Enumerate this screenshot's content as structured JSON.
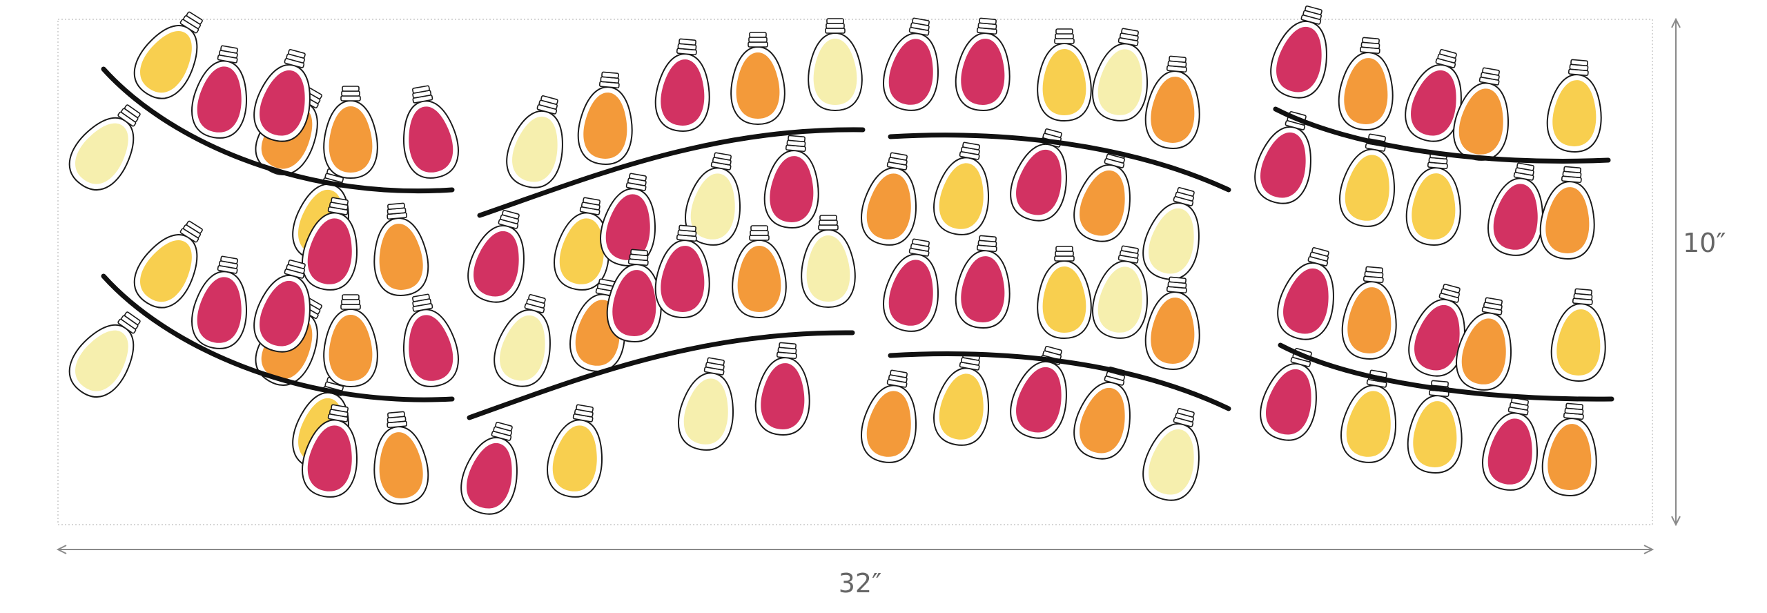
{
  "dimensions": {
    "width_label": "32″",
    "height_label": "10″"
  },
  "colors": {
    "background": "#ffffff",
    "panel_border": "#d6d6d6",
    "cord": "#111111",
    "bulb_outline": "#1a1a1a",
    "dimension_line": "#8a8a8a",
    "dimension_text": "#666666"
  },
  "bulb_palette": {
    "red": "#d23262",
    "orange": "#f39a3a",
    "yellow": "#f8cf4f",
    "cream": "#f6efae"
  },
  "strands": [
    {
      "panel": 1,
      "row": "top",
      "colors": [
        "cream",
        "yellow",
        "red",
        "orange",
        "red",
        "yellow",
        "orange",
        "red",
        "red",
        "orange"
      ]
    },
    {
      "panel": 1,
      "row": "bottom",
      "colors": [
        "cream",
        "yellow",
        "red",
        "orange",
        "red",
        "yellow",
        "orange",
        "red",
        "red",
        "orange"
      ]
    },
    {
      "panel": 2,
      "row": "top",
      "colors": [
        "cream",
        "red",
        "orange",
        "yellow",
        "red",
        "red",
        "cream",
        "orange",
        "red",
        "cream"
      ]
    },
    {
      "panel": 2,
      "row": "bottom",
      "colors": [
        "cream",
        "red",
        "orange",
        "yellow",
        "red",
        "red",
        "cream",
        "orange",
        "red",
        "cream"
      ]
    },
    {
      "panel": 3,
      "row": "top",
      "colors": [
        "red",
        "orange",
        "red",
        "yellow",
        "red",
        "orange",
        "yellow",
        "cream",
        "orange",
        "cream"
      ]
    },
    {
      "panel": 3,
      "row": "bottom",
      "colors": [
        "red",
        "orange",
        "red",
        "yellow",
        "red",
        "orange",
        "yellow",
        "cream",
        "orange",
        "cream"
      ]
    },
    {
      "panel": 4,
      "row": "top",
      "colors": [
        "red",
        "red",
        "orange",
        "yellow",
        "red",
        "yellow",
        "orange",
        "red",
        "yellow",
        "orange"
      ]
    },
    {
      "panel": 4,
      "row": "bottom",
      "colors": [
        "red",
        "red",
        "orange",
        "yellow",
        "red",
        "yellow",
        "orange",
        "red",
        "yellow",
        "orange"
      ]
    }
  ]
}
